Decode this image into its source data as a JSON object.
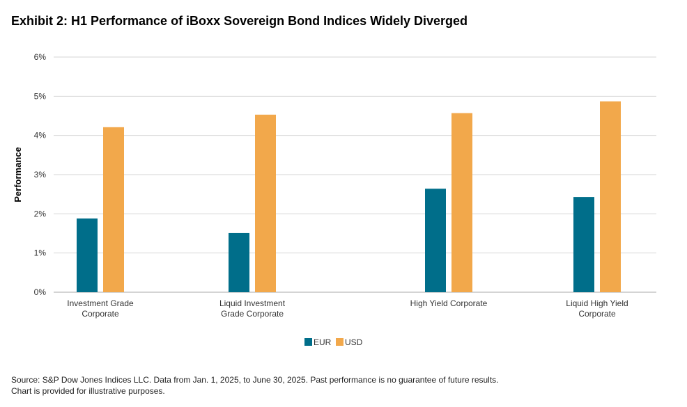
{
  "title": "Exhibit 2: H1 Performance of iBoxx Sovereign Bond Indices Widely Diverged",
  "chart_data": {
    "type": "bar",
    "categories": [
      [
        "Investment Grade",
        "Corporate"
      ],
      [
        "Liquid Investment",
        "Grade Corporate"
      ],
      [
        "High Yield Corporate"
      ],
      [
        "Liquid High Yield",
        "Corporate"
      ]
    ],
    "series": [
      {
        "name": "EUR",
        "color": "#006e8a",
        "values": [
          1.88,
          1.51,
          2.64,
          2.43
        ]
      },
      {
        "name": "USD",
        "color": "#f2a84b",
        "values": [
          4.21,
          4.53,
          4.57,
          4.87
        ]
      }
    ],
    "ylabel": "Performance",
    "ylim": [
      0,
      6
    ],
    "yticks": [
      "0%",
      "1%",
      "2%",
      "3%",
      "4%",
      "5%",
      "6%"
    ],
    "grid": true,
    "legend_position": "bottom-center"
  },
  "footer": {
    "line1": "Source: S&P Dow Jones Indices LLC. Data from Jan. 1, 2025, to June 30, 2025. Past performance is no guarantee of future results.",
    "line2": "Chart is provided for illustrative purposes."
  }
}
